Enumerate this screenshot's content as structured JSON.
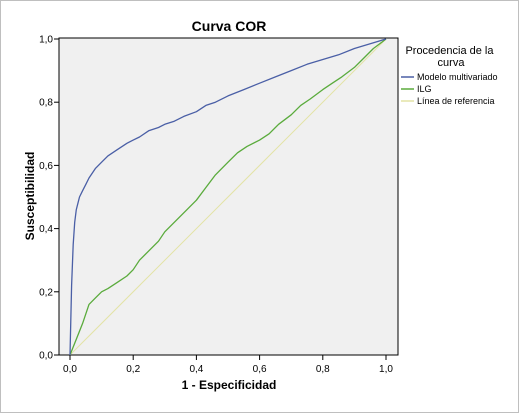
{
  "chart_data": {
    "type": "line",
    "title": "Curva COR",
    "xlabel": "1 - Especificidad",
    "ylabel": "Susceptibilidad",
    "xlim": [
      0,
      1
    ],
    "ylim": [
      0,
      1
    ],
    "xticks": [
      "0,0",
      "0,2",
      "0,4",
      "0,6",
      "0,8",
      "1,0"
    ],
    "yticks": [
      "0,0",
      "0,2",
      "0,4",
      "0,6",
      "0,8",
      "1,0"
    ],
    "grid": false,
    "legend_title": "Procedencia de la curva",
    "legend_position": "right",
    "series": [
      {
        "name": "Modelo multivariado",
        "color": "#4a5fa6",
        "x": [
          0.0,
          0.005,
          0.01,
          0.015,
          0.02,
          0.025,
          0.03,
          0.04,
          0.05,
          0.06,
          0.08,
          0.1,
          0.12,
          0.15,
          0.18,
          0.2,
          0.22,
          0.25,
          0.28,
          0.3,
          0.33,
          0.36,
          0.4,
          0.43,
          0.46,
          0.5,
          0.55,
          0.6,
          0.65,
          0.7,
          0.75,
          0.8,
          0.85,
          0.9,
          0.95,
          1.0
        ],
        "y": [
          0.0,
          0.22,
          0.35,
          0.42,
          0.46,
          0.48,
          0.5,
          0.52,
          0.54,
          0.56,
          0.59,
          0.61,
          0.63,
          0.65,
          0.67,
          0.68,
          0.69,
          0.71,
          0.72,
          0.73,
          0.74,
          0.755,
          0.77,
          0.79,
          0.8,
          0.82,
          0.84,
          0.86,
          0.88,
          0.9,
          0.92,
          0.935,
          0.95,
          0.97,
          0.985,
          1.0
        ]
      },
      {
        "name": "ILG",
        "color": "#5aab3c",
        "x": [
          0.0,
          0.02,
          0.04,
          0.06,
          0.08,
          0.1,
          0.12,
          0.15,
          0.18,
          0.2,
          0.22,
          0.25,
          0.28,
          0.3,
          0.33,
          0.36,
          0.4,
          0.43,
          0.46,
          0.5,
          0.53,
          0.56,
          0.6,
          0.63,
          0.66,
          0.7,
          0.73,
          0.76,
          0.8,
          0.83,
          0.86,
          0.9,
          0.93,
          0.96,
          1.0
        ],
        "y": [
          0.0,
          0.05,
          0.1,
          0.16,
          0.18,
          0.2,
          0.21,
          0.23,
          0.25,
          0.27,
          0.3,
          0.33,
          0.36,
          0.39,
          0.42,
          0.45,
          0.49,
          0.53,
          0.57,
          0.61,
          0.64,
          0.66,
          0.68,
          0.7,
          0.73,
          0.76,
          0.79,
          0.81,
          0.84,
          0.86,
          0.88,
          0.91,
          0.94,
          0.97,
          1.0
        ]
      },
      {
        "name": "Línea de referencia",
        "color": "#e3e3a6",
        "x": [
          0,
          1
        ],
        "y": [
          0,
          1
        ]
      }
    ]
  }
}
